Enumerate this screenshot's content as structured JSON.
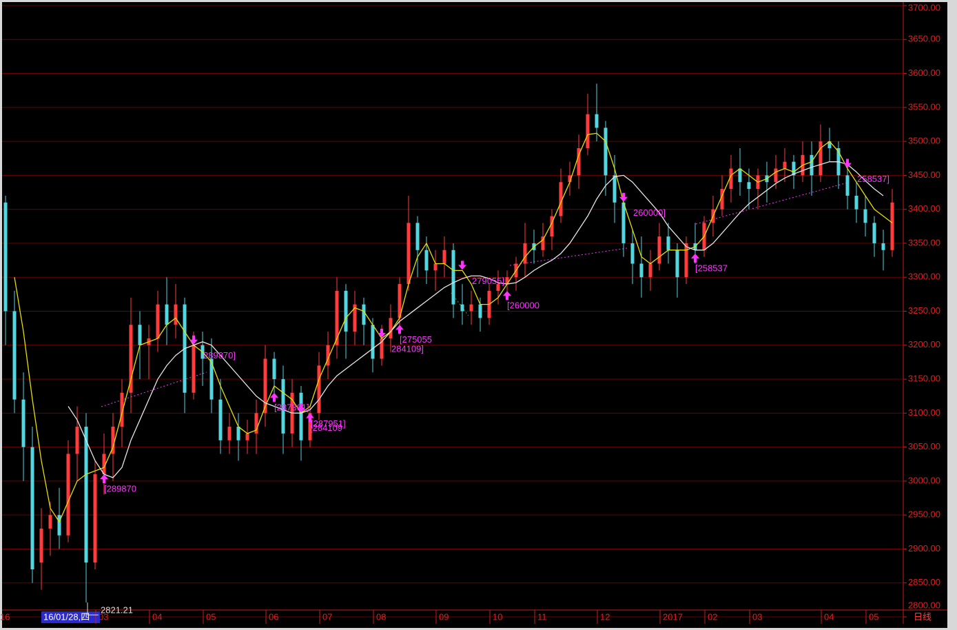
{
  "chart_data": {
    "type": "candlestick",
    "categories": [
      "16",
      null,
      null,
      null,
      null,
      null,
      null,
      null,
      null,
      null,
      null,
      "03",
      null,
      null,
      null,
      null,
      null,
      "04",
      null,
      null,
      null,
      null,
      null,
      "05",
      null,
      null,
      null,
      null,
      null,
      null,
      "06",
      null,
      null,
      null,
      null,
      null,
      "07",
      null,
      null,
      null,
      null,
      null,
      "08",
      null,
      null,
      null,
      null,
      null,
      null,
      "09",
      null,
      null,
      null,
      null,
      null,
      "10",
      null,
      null,
      null,
      null,
      "11",
      null,
      null,
      null,
      null,
      null,
      null,
      "12",
      null,
      null,
      null,
      null,
      null,
      null,
      "2017",
      null,
      null,
      null,
      null,
      "02",
      null,
      null,
      null,
      null,
      "03",
      null,
      null,
      null,
      null,
      null,
      null,
      null,
      "04",
      null,
      null,
      null,
      null,
      "05",
      null,
      null
    ],
    "cursor_label": "16/01/28,四",
    "period_label": "日线",
    "up_color": "#ff3b3b",
    "down_color": "#52d6df",
    "grid": true,
    "ylim": [
      2800,
      3700
    ],
    "yticks": [
      {
        "value": 2800,
        "label": "2800.00"
      },
      {
        "value": 2850,
        "label": "2850.00"
      },
      {
        "value": 2900,
        "label": "2900.00"
      },
      {
        "value": 2950,
        "label": "2950.00"
      },
      {
        "value": 3000,
        "label": "3000.00"
      },
      {
        "value": 3050,
        "label": "3050.00"
      },
      {
        "value": 3100,
        "label": "3100.00"
      },
      {
        "value": 3150,
        "label": "3150.00"
      },
      {
        "value": 3200,
        "label": "3200.00"
      },
      {
        "value": 3250,
        "label": "3250.00"
      },
      {
        "value": 3300,
        "label": "3300.00"
      },
      {
        "value": 3350,
        "label": "3350.00"
      },
      {
        "value": 3400,
        "label": "3400.00"
      },
      {
        "value": 3450,
        "label": "3450.00"
      },
      {
        "value": 3500,
        "label": "3500.00"
      },
      {
        "value": 3550,
        "label": "3550.00"
      },
      {
        "value": 3600,
        "label": "3600.00"
      },
      {
        "value": 3650,
        "label": "3650.00"
      },
      {
        "value": 3700,
        "label": "3700.00"
      }
    ],
    "candles": [
      {
        "open": 3410,
        "high": 3420,
        "low": 3200,
        "close": 3250
      },
      {
        "open": 3250,
        "high": 3280,
        "low": 3100,
        "close": 3120
      },
      {
        "open": 3120,
        "high": 3160,
        "low": 3000,
        "close": 3050
      },
      {
        "open": 3050,
        "high": 3080,
        "low": 2850,
        "close": 2870
      },
      {
        "open": 2880,
        "high": 2960,
        "low": 2840,
        "close": 2930
      },
      {
        "open": 2930,
        "high": 2970,
        "low": 2890,
        "close": 2950
      },
      {
        "open": 2950,
        "high": 2990,
        "low": 2900,
        "close": 2920
      },
      {
        "open": 2920,
        "high": 3060,
        "low": 2910,
        "close": 3040
      },
      {
        "open": 3040,
        "high": 3110,
        "low": 3000,
        "close": 3080
      },
      {
        "open": 3080,
        "high": 3100,
        "low": 2821.21,
        "close": 2880
      },
      {
        "open": 2880,
        "high": 3030,
        "low": 2870,
        "close": 3010
      },
      {
        "open": 3010,
        "high": 3070,
        "low": 2980,
        "close": 3040
      },
      {
        "open": 3040,
        "high": 3100,
        "low": 3000,
        "close": 3080
      },
      {
        "open": 3080,
        "high": 3150,
        "low": 3050,
        "close": 3130
      },
      {
        "open": 3130,
        "high": 3270,
        "low": 3100,
        "close": 3230
      },
      {
        "open": 3230,
        "high": 3250,
        "low": 3150,
        "close": 3200
      },
      {
        "open": 3200,
        "high": 3230,
        "low": 3150,
        "close": 3210
      },
      {
        "open": 3210,
        "high": 3280,
        "low": 3190,
        "close": 3260
      },
      {
        "open": 3260,
        "high": 3300,
        "low": 3200,
        "close": 3230
      },
      {
        "open": 3230,
        "high": 3290,
        "low": 3210,
        "close": 3260
      },
      {
        "open": 3260,
        "high": 3270,
        "low": 3100,
        "close": 3130
      },
      {
        "open": 3130,
        "high": 3220,
        "low": 3120,
        "close": 3200
      },
      {
        "open": 3200,
        "high": 3220,
        "low": 3140,
        "close": 3180
      },
      {
        "open": 3180,
        "high": 3210,
        "low": 3100,
        "close": 3120
      },
      {
        "open": 3120,
        "high": 3150,
        "low": 3040,
        "close": 3060
      },
      {
        "open": 3060,
        "high": 3100,
        "low": 3040,
        "close": 3080
      },
      {
        "open": 3080,
        "high": 3100,
        "low": 3030,
        "close": 3060
      },
      {
        "open": 3060,
        "high": 3090,
        "low": 3040,
        "close": 3070
      },
      {
        "open": 3070,
        "high": 3120,
        "low": 3040,
        "close": 3100
      },
      {
        "open": 3100,
        "high": 3200,
        "low": 3080,
        "close": 3180
      },
      {
        "open": 3180,
        "high": 3190,
        "low": 3120,
        "close": 3150
      },
      {
        "open": 3150,
        "high": 3170,
        "low": 3040,
        "close": 3070
      },
      {
        "open": 3070,
        "high": 3150,
        "low": 3050,
        "close": 3130
      },
      {
        "open": 3130,
        "high": 3140,
        "low": 3030,
        "close": 3060
      },
      {
        "open": 3060,
        "high": 3110,
        "low": 3050,
        "close": 3100
      },
      {
        "open": 3100,
        "high": 3190,
        "low": 3090,
        "close": 3170
      },
      {
        "open": 3170,
        "high": 3220,
        "low": 3150,
        "close": 3200
      },
      {
        "open": 3200,
        "high": 3300,
        "low": 3180,
        "close": 3280
      },
      {
        "open": 3280,
        "high": 3290,
        "low": 3180,
        "close": 3220
      },
      {
        "open": 3220,
        "high": 3280,
        "low": 3200,
        "close": 3260
      },
      {
        "open": 3260,
        "high": 3270,
        "low": 3200,
        "close": 3230
      },
      {
        "open": 3230,
        "high": 3240,
        "low": 3160,
        "close": 3180
      },
      {
        "open": 3180,
        "high": 3230,
        "low": 3170,
        "close": 3210
      },
      {
        "open": 3210,
        "high": 3260,
        "low": 3190,
        "close": 3240
      },
      {
        "open": 3240,
        "high": 3300,
        "low": 3220,
        "close": 3290
      },
      {
        "open": 3290,
        "high": 3420,
        "low": 3280,
        "close": 3380
      },
      {
        "open": 3380,
        "high": 3390,
        "low": 3300,
        "close": 3340
      },
      {
        "open": 3340,
        "high": 3360,
        "low": 3290,
        "close": 3310
      },
      {
        "open": 3310,
        "high": 3340,
        "low": 3280,
        "close": 3320
      },
      {
        "open": 3320,
        "high": 3360,
        "low": 3300,
        "close": 3340
      },
      {
        "open": 3340,
        "high": 3350,
        "low": 3240,
        "close": 3260
      },
      {
        "open": 3260,
        "high": 3290,
        "low": 3230,
        "close": 3250
      },
      {
        "open": 3250,
        "high": 3280,
        "low": 3230,
        "close": 3260
      },
      {
        "open": 3260,
        "high": 3270,
        "low": 3220,
        "close": 3240
      },
      {
        "open": 3240,
        "high": 3290,
        "low": 3230,
        "close": 3280
      },
      {
        "open": 3280,
        "high": 3310,
        "low": 3260,
        "close": 3290
      },
      {
        "open": 3290,
        "high": 3310,
        "low": 3270,
        "close": 3300
      },
      {
        "open": 3300,
        "high": 3330,
        "low": 3280,
        "close": 3320
      },
      {
        "open": 3320,
        "high": 3380,
        "low": 3300,
        "close": 3350
      },
      {
        "open": 3350,
        "high": 3370,
        "low": 3320,
        "close": 3340
      },
      {
        "open": 3340,
        "high": 3380,
        "low": 3330,
        "close": 3360
      },
      {
        "open": 3360,
        "high": 3400,
        "low": 3340,
        "close": 3390
      },
      {
        "open": 3390,
        "high": 3460,
        "low": 3380,
        "close": 3440
      },
      {
        "open": 3440,
        "high": 3470,
        "low": 3420,
        "close": 3450
      },
      {
        "open": 3450,
        "high": 3510,
        "low": 3430,
        "close": 3490
      },
      {
        "open": 3490,
        "high": 3570,
        "low": 3480,
        "close": 3540
      },
      {
        "open": 3540,
        "high": 3585,
        "low": 3500,
        "close": 3520
      },
      {
        "open": 3520,
        "high": 3530,
        "low": 3420,
        "close": 3450
      },
      {
        "open": 3450,
        "high": 3480,
        "low": 3380,
        "close": 3410
      },
      {
        "open": 3410,
        "high": 3420,
        "low": 3330,
        "close": 3350
      },
      {
        "open": 3350,
        "high": 3370,
        "low": 3290,
        "close": 3320
      },
      {
        "open": 3320,
        "high": 3360,
        "low": 3270,
        "close": 3300
      },
      {
        "open": 3300,
        "high": 3340,
        "low": 3280,
        "close": 3320
      },
      {
        "open": 3320,
        "high": 3380,
        "low": 3310,
        "close": 3360
      },
      {
        "open": 3360,
        "high": 3380,
        "low": 3320,
        "close": 3340
      },
      {
        "open": 3340,
        "high": 3350,
        "low": 3270,
        "close": 3300
      },
      {
        "open": 3300,
        "high": 3360,
        "low": 3290,
        "close": 3350
      },
      {
        "open": 3350,
        "high": 3380,
        "low": 3320,
        "close": 3340
      },
      {
        "open": 3340,
        "high": 3390,
        "low": 3330,
        "close": 3380
      },
      {
        "open": 3380,
        "high": 3420,
        "low": 3360,
        "close": 3400
      },
      {
        "open": 3400,
        "high": 3450,
        "low": 3390,
        "close": 3430
      },
      {
        "open": 3430,
        "high": 3480,
        "low": 3410,
        "close": 3460
      },
      {
        "open": 3460,
        "high": 3490,
        "low": 3420,
        "close": 3440
      },
      {
        "open": 3440,
        "high": 3460,
        "low": 3400,
        "close": 3430
      },
      {
        "open": 3430,
        "high": 3460,
        "low": 3400,
        "close": 3450
      },
      {
        "open": 3450,
        "high": 3470,
        "low": 3410,
        "close": 3440
      },
      {
        "open": 3440,
        "high": 3480,
        "low": 3430,
        "close": 3460
      },
      {
        "open": 3460,
        "high": 3490,
        "low": 3440,
        "close": 3470
      },
      {
        "open": 3470,
        "high": 3480,
        "low": 3430,
        "close": 3450
      },
      {
        "open": 3450,
        "high": 3500,
        "low": 3440,
        "close": 3480
      },
      {
        "open": 3480,
        "high": 3500,
        "low": 3420,
        "close": 3450
      },
      {
        "open": 3450,
        "high": 3525,
        "low": 3440,
        "close": 3500
      },
      {
        "open": 3500,
        "high": 3520,
        "low": 3470,
        "close": 3490
      },
      {
        "open": 3490,
        "high": 3500,
        "low": 3430,
        "close": 3450
      },
      {
        "open": 3450,
        "high": 3470,
        "low": 3400,
        "close": 3420
      },
      {
        "open": 3420,
        "high": 3440,
        "low": 3380,
        "close": 3400
      },
      {
        "open": 3400,
        "high": 3420,
        "low": 3360,
        "close": 3380
      },
      {
        "open": 3380,
        "high": 3390,
        "low": 3330,
        "close": 3350
      },
      {
        "open": 3350,
        "high": 3370,
        "low": 3310,
        "close": 3340
      },
      {
        "open": 3340,
        "high": 3430,
        "low": 3330,
        "close": 3410
      }
    ],
    "series": [
      {
        "color": "#e8e000",
        "values": [
          null,
          3300,
          3220,
          3120,
          3030,
          2960,
          2940,
          2970,
          3000,
          3010,
          3015,
          3020,
          3050,
          3100,
          3150,
          3200,
          3205,
          3210,
          3230,
          3240,
          3220,
          3200,
          3190,
          3175,
          3140,
          3110,
          3080,
          3070,
          3075,
          3110,
          3140,
          3130,
          3120,
          3100,
          3110,
          3150,
          3180,
          3210,
          3240,
          3255,
          3250,
          3230,
          3210,
          3220,
          3240,
          3290,
          3330,
          3350,
          3320,
          3320,
          3310,
          3310,
          3290,
          3260,
          3260,
          3270,
          3290,
          3310,
          3330,
          3345,
          3355,
          3380,
          3410,
          3440,
          3480,
          3510,
          3512,
          3500,
          3460,
          3410,
          3370,
          3330,
          3320,
          3330,
          3340,
          3340,
          3340,
          3345,
          3360,
          3390,
          3420,
          3450,
          3460,
          3450,
          3440,
          3445,
          3455,
          3460,
          3455,
          3465,
          3470,
          3490,
          3500,
          3485,
          3460,
          3440,
          3420,
          3400,
          3390,
          3380
        ]
      },
      {
        "color": "#e6e6e6",
        "values": [
          null,
          null,
          null,
          null,
          null,
          null,
          null,
          3110,
          3090,
          3060,
          3030,
          3010,
          3005,
          3020,
          3060,
          3090,
          3120,
          3150,
          3170,
          3185,
          3195,
          3200,
          3205,
          3200,
          3185,
          3170,
          3155,
          3140,
          3125,
          3115,
          3110,
          3105,
          3100,
          3100,
          3105,
          3120,
          3140,
          3155,
          3165,
          3175,
          3185,
          3195,
          3205,
          3220,
          3235,
          3245,
          3255,
          3265,
          3275,
          3285,
          3292,
          3298,
          3302,
          3302,
          3298,
          3292,
          3290,
          3292,
          3300,
          3310,
          3318,
          3325,
          3335,
          3350,
          3370,
          3390,
          3415,
          3435,
          3448,
          3450,
          3440,
          3425,
          3410,
          3395,
          3375,
          3360,
          3345,
          3340,
          3340,
          3350,
          3365,
          3380,
          3395,
          3408,
          3418,
          3428,
          3438,
          3446,
          3452,
          3457,
          3462,
          3466,
          3470,
          3470,
          3466,
          3455,
          3442,
          3430,
          3420,
          null
        ]
      }
    ],
    "annotation_color": "#ff33ff",
    "annotations": [
      {
        "text": "[289870",
        "index": 11,
        "dir": "up"
      },
      {
        "text": "289870]",
        "index": 21,
        "dir": "down"
      },
      {
        "text": "[287361]",
        "index": 30,
        "dir": "up"
      },
      {
        "text": "[287951]",
        "index": 33,
        "dir": "down"
      },
      {
        "text": "[284109",
        "index": 34,
        "dir": "up"
      },
      {
        "text": "284109]",
        "index": 42,
        "dir": "down"
      },
      {
        "text": "[275055",
        "index": 44,
        "dir": "up"
      },
      {
        "text": "279055]",
        "index": 51,
        "dir": "down"
      },
      {
        "text": "[260000",
        "index": 56,
        "dir": "up"
      },
      {
        "text": "260000]",
        "index": 69,
        "dir": "down"
      },
      {
        "text": "[258537",
        "index": 77,
        "dir": "up"
      },
      {
        "text": "258537]",
        "index": 94,
        "dir": "down"
      }
    ],
    "low_label": 2821.21,
    "low_index": 9
  }
}
